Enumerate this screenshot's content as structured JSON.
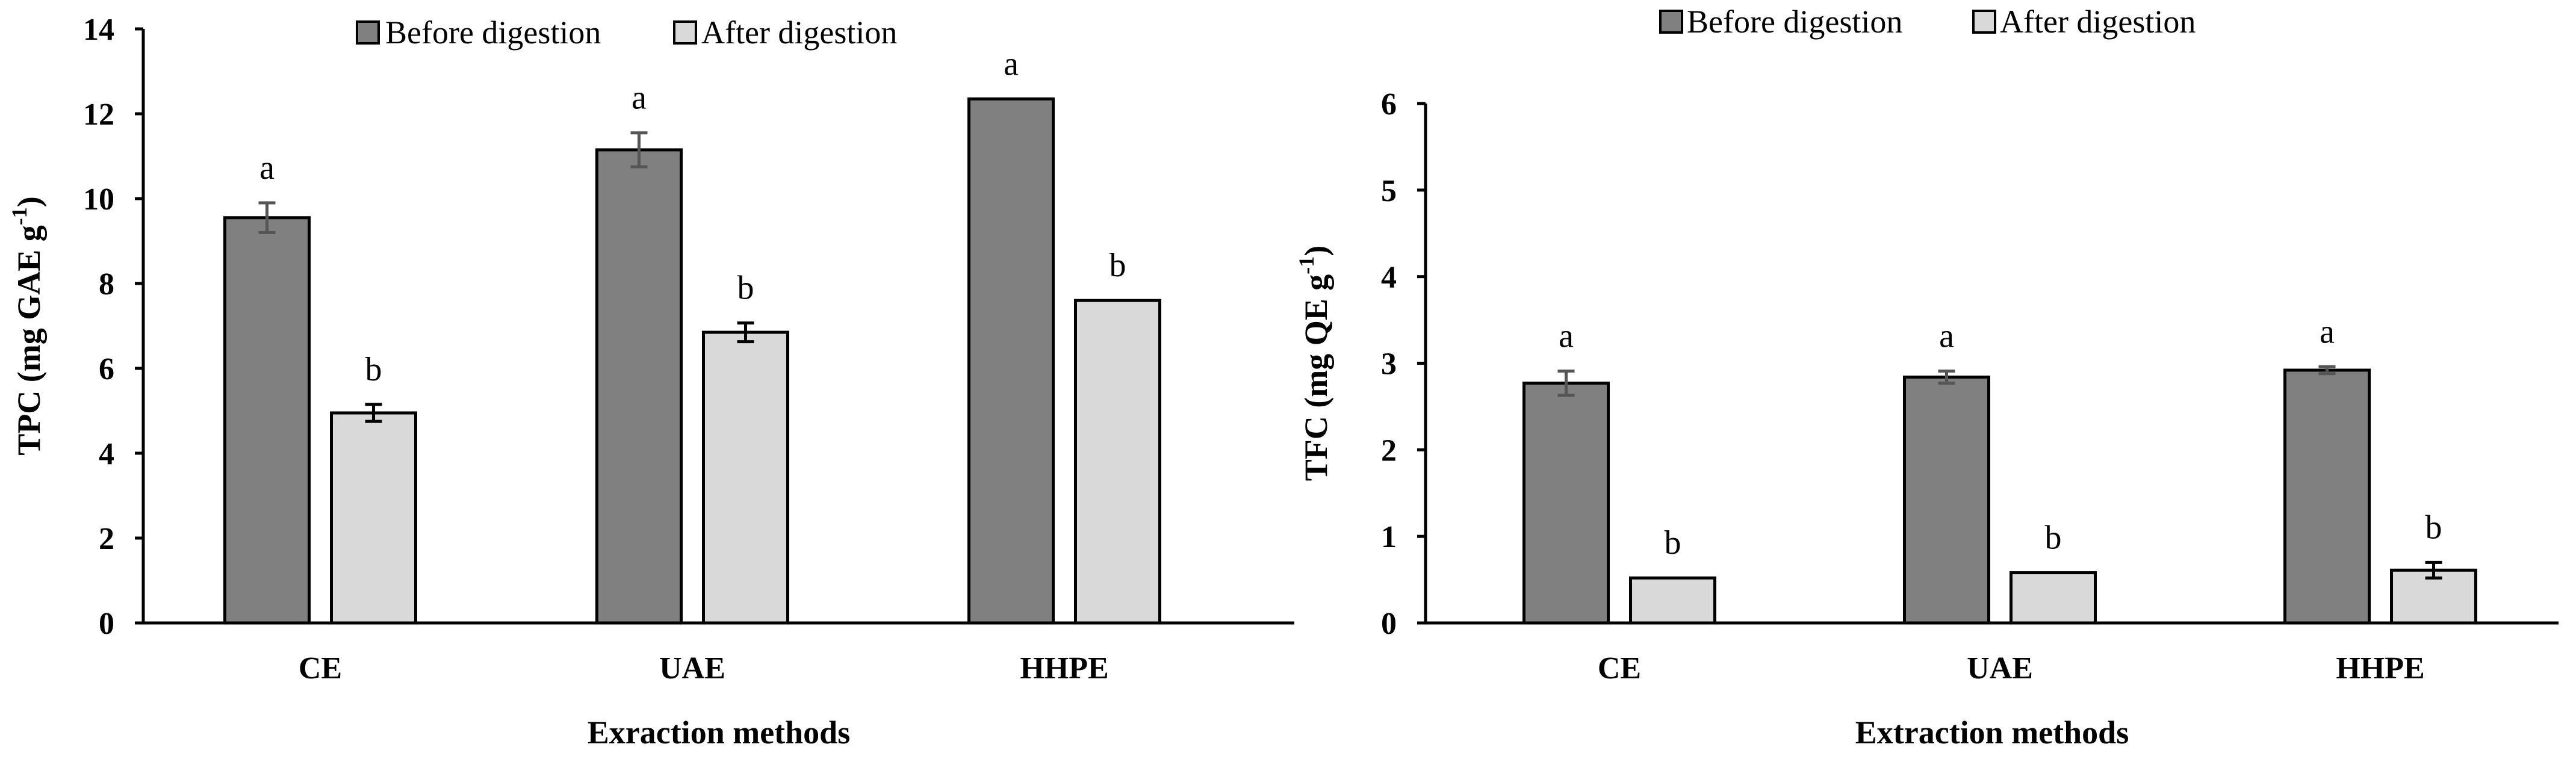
{
  "chart_data": [
    {
      "type": "bar",
      "categories": [
        "CE",
        "UAE",
        "HHPE"
      ],
      "series": [
        {
          "name": "Before digestion",
          "values": [
            9.55,
            11.15,
            12.35
          ],
          "errors": [
            0.35,
            0.4,
            0.02
          ],
          "labels": [
            "a",
            "a",
            "a"
          ],
          "color": "#808080"
        },
        {
          "name": "After digestion",
          "values": [
            4.95,
            6.85,
            7.6
          ],
          "errors": [
            0.2,
            0.22,
            0.02
          ],
          "labels": [
            "b",
            "b",
            "b"
          ],
          "color": "#d9d9d9"
        }
      ],
      "xlabel": "Exraction methods",
      "ylabel": "TPC (mg GAE g",
      "ylabel_sup": "-1",
      "ylabel_close": ")",
      "ylim": [
        0,
        14
      ],
      "yticks": [
        0,
        2,
        4,
        6,
        8,
        10,
        12,
        14
      ],
      "legend_position": "top",
      "grid": false
    },
    {
      "type": "bar",
      "categories": [
        "CE",
        "UAE",
        "HHPE"
      ],
      "series": [
        {
          "name": "Before digestion",
          "values": [
            2.77,
            2.84,
            2.92
          ],
          "errors": [
            0.14,
            0.07,
            0.04
          ],
          "labels": [
            "a",
            "a",
            "a"
          ],
          "color": "#808080"
        },
        {
          "name": "After digestion",
          "values": [
            0.52,
            0.58,
            0.61
          ],
          "errors": [
            0.03,
            0.01,
            0.09
          ],
          "labels": [
            "b",
            "b",
            "b"
          ],
          "color": "#d9d9d9"
        }
      ],
      "xlabel": "Extraction methods",
      "ylabel": "TFC (mg QE g",
      "ylabel_sup": "-1",
      "ylabel_close": ")",
      "ylim": [
        0,
        6
      ],
      "yticks": [
        0,
        1,
        2,
        3,
        4,
        5,
        6
      ],
      "legend_position": "top",
      "grid": false
    }
  ]
}
